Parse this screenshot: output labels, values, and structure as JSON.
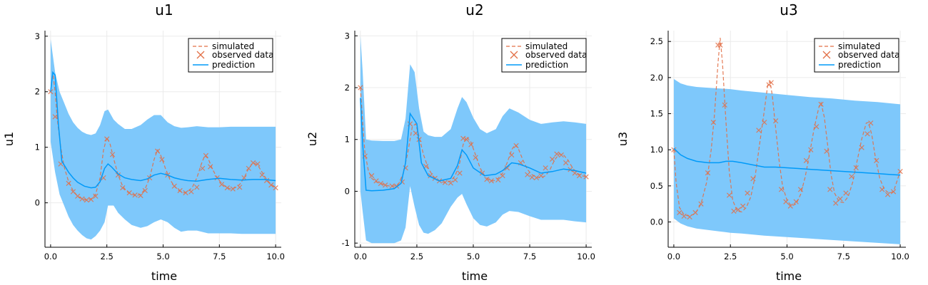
{
  "colors": {
    "band": "#7ec8fb",
    "prediction": "#009af9",
    "simulated": "#e26f46",
    "observed": "#e26f46",
    "grid": "#ebebeb",
    "axis": "#000000"
  },
  "chart_data": [
    {
      "type": "line",
      "title": "u1",
      "xlabel": "time",
      "ylabel": "u1",
      "xlim": [
        -0.25,
        10.25
      ],
      "ylim": [
        -0.8,
        3.1
      ],
      "xticks": [
        0,
        2.5,
        5,
        7.5,
        10
      ],
      "xtick_labels": [
        "0.0",
        "2.5",
        "5.0",
        "7.5",
        "10.0"
      ],
      "yticks": [
        0,
        1,
        2,
        3
      ],
      "ytick_labels": [
        "0",
        "1",
        "2",
        "3"
      ],
      "legend": {
        "position": "top-right",
        "entries": [
          "simulated",
          "observed data",
          "prediction"
        ]
      },
      "simulated": {
        "x": [
          0,
          0.1,
          0.2,
          0.3,
          0.45,
          0.6,
          0.8,
          1.0,
          1.2,
          1.4,
          1.6,
          1.8,
          2.0,
          2.2,
          2.35,
          2.5,
          2.65,
          2.8,
          3.0,
          3.2,
          3.4,
          3.6,
          3.8,
          4.0,
          4.2,
          4.4,
          4.6,
          4.75,
          4.9,
          5.1,
          5.3,
          5.5,
          5.7,
          5.9,
          6.1,
          6.3,
          6.5,
          6.7,
          6.85,
          7.0,
          7.2,
          7.4,
          7.6,
          7.8,
          8.0,
          8.2,
          8.4,
          8.6,
          8.8,
          9.0,
          9.2,
          9.4,
          9.6,
          9.8,
          10.0
        ],
        "y": [
          2.0,
          2.35,
          2.0,
          1.5,
          1.0,
          0.65,
          0.38,
          0.22,
          0.12,
          0.07,
          0.05,
          0.07,
          0.15,
          0.45,
          0.95,
          1.18,
          1.05,
          0.8,
          0.5,
          0.3,
          0.2,
          0.15,
          0.13,
          0.15,
          0.25,
          0.45,
          0.78,
          0.95,
          0.85,
          0.62,
          0.42,
          0.3,
          0.22,
          0.18,
          0.2,
          0.28,
          0.45,
          0.7,
          0.85,
          0.8,
          0.6,
          0.45,
          0.35,
          0.28,
          0.25,
          0.27,
          0.33,
          0.45,
          0.62,
          0.72,
          0.68,
          0.55,
          0.42,
          0.33,
          0.27
        ]
      },
      "observed": {
        "x": [
          0,
          0.2,
          0.45,
          0.8,
          1.0,
          1.2,
          1.4,
          1.6,
          1.8,
          2.0,
          2.35,
          2.5,
          2.75,
          3.0,
          3.2,
          3.5,
          3.75,
          4.0,
          4.2,
          4.4,
          4.75,
          4.95,
          5.2,
          5.5,
          5.75,
          6.0,
          6.25,
          6.5,
          6.75,
          6.9,
          7.1,
          7.4,
          7.6,
          7.85,
          8.1,
          8.4,
          8.6,
          8.8,
          9.0,
          9.2,
          9.4,
          9.6,
          9.8,
          10.0
        ],
        "y": [
          2.0,
          1.55,
          0.7,
          0.35,
          0.2,
          0.12,
          0.07,
          0.05,
          0.06,
          0.12,
          0.45,
          1.15,
          0.87,
          0.5,
          0.27,
          0.18,
          0.14,
          0.13,
          0.22,
          0.45,
          0.93,
          0.78,
          0.5,
          0.3,
          0.22,
          0.18,
          0.2,
          0.28,
          0.62,
          0.85,
          0.65,
          0.45,
          0.33,
          0.27,
          0.25,
          0.28,
          0.45,
          0.62,
          0.72,
          0.7,
          0.5,
          0.4,
          0.32,
          0.27
        ]
      },
      "prediction": {
        "x": [
          0,
          0.1,
          0.2,
          0.35,
          0.5,
          0.8,
          1.0,
          1.2,
          1.5,
          1.8,
          2.0,
          2.2,
          2.4,
          2.55,
          2.7,
          3.0,
          3.3,
          3.6,
          4.0,
          4.3,
          4.6,
          4.9,
          5.2,
          5.5,
          5.8,
          6.1,
          6.5,
          7.0,
          7.5,
          8.0,
          8.5,
          9.0,
          9.5,
          10.0
        ],
        "y": [
          2.0,
          2.35,
          2.3,
          1.4,
          0.75,
          0.55,
          0.45,
          0.37,
          0.3,
          0.27,
          0.28,
          0.38,
          0.62,
          0.7,
          0.65,
          0.52,
          0.45,
          0.42,
          0.4,
          0.43,
          0.5,
          0.53,
          0.5,
          0.45,
          0.42,
          0.4,
          0.39,
          0.42,
          0.44,
          0.42,
          0.41,
          0.42,
          0.42,
          0.4
        ]
      },
      "band": {
        "x": [
          0,
          0.2,
          0.4,
          0.6,
          0.8,
          1.0,
          1.2,
          1.4,
          1.6,
          1.8,
          2.0,
          2.2,
          2.4,
          2.55,
          2.8,
          3.0,
          3.3,
          3.6,
          4.0,
          4.3,
          4.6,
          4.9,
          5.2,
          5.5,
          5.8,
          6.1,
          6.5,
          7.0,
          7.5,
          8.0,
          8.5,
          9.0,
          9.5,
          10.0
        ],
        "lower": [
          1.1,
          0.55,
          0.15,
          -0.05,
          -0.25,
          -0.4,
          -0.5,
          -0.58,
          -0.64,
          -0.66,
          -0.6,
          -0.5,
          -0.35,
          -0.05,
          -0.05,
          -0.18,
          -0.3,
          -0.4,
          -0.45,
          -0.42,
          -0.35,
          -0.3,
          -0.35,
          -0.45,
          -0.52,
          -0.5,
          -0.5,
          -0.55,
          -0.55,
          -0.55,
          -0.56,
          -0.56,
          -0.56,
          -0.56
        ],
        "upper": [
          2.95,
          2.35,
          2.0,
          1.8,
          1.6,
          1.45,
          1.35,
          1.28,
          1.24,
          1.22,
          1.25,
          1.4,
          1.65,
          1.68,
          1.5,
          1.42,
          1.33,
          1.33,
          1.4,
          1.5,
          1.58,
          1.58,
          1.45,
          1.38,
          1.35,
          1.36,
          1.38,
          1.36,
          1.36,
          1.37,
          1.37,
          1.37,
          1.37,
          1.37
        ]
      }
    },
    {
      "type": "line",
      "title": "u2",
      "xlabel": "time",
      "ylabel": "u2",
      "xlim": [
        -0.25,
        10.25
      ],
      "ylim": [
        -1.08,
        3.1
      ],
      "xticks": [
        0,
        2.5,
        5,
        7.5,
        10
      ],
      "xtick_labels": [
        "0.0",
        "2.5",
        "5.0",
        "7.5",
        "10.0"
      ],
      "yticks": [
        -1,
        0,
        1,
        2,
        3
      ],
      "ytick_labels": [
        "-1",
        "0",
        "1",
        "2",
        "3"
      ],
      "legend": {
        "position": "top-right",
        "entries": [
          "simulated",
          "observed data",
          "prediction"
        ]
      },
      "simulated": {
        "x": [
          0,
          0.1,
          0.2,
          0.35,
          0.5,
          0.7,
          0.9,
          1.1,
          1.3,
          1.5,
          1.7,
          1.9,
          2.1,
          2.3,
          2.45,
          2.6,
          2.8,
          3.0,
          3.2,
          3.4,
          3.6,
          3.8,
          4.0,
          4.2,
          4.4,
          4.55,
          4.7,
          4.9,
          5.1,
          5.3,
          5.5,
          5.7,
          5.9,
          6.1,
          6.3,
          6.5,
          6.7,
          6.85,
          7.0,
          7.2,
          7.4,
          7.6,
          7.8,
          8.0,
          8.2,
          8.4,
          8.6,
          8.8,
          9.0,
          9.2,
          9.4,
          9.6,
          9.8,
          10.0
        ],
        "y": [
          2.0,
          1.3,
          0.75,
          0.4,
          0.25,
          0.18,
          0.15,
          0.12,
          0.1,
          0.1,
          0.15,
          0.35,
          0.75,
          1.25,
          1.3,
          1.05,
          0.7,
          0.45,
          0.3,
          0.22,
          0.18,
          0.17,
          0.2,
          0.3,
          0.55,
          0.9,
          1.05,
          0.95,
          0.7,
          0.45,
          0.3,
          0.22,
          0.2,
          0.25,
          0.35,
          0.55,
          0.8,
          0.9,
          0.82,
          0.6,
          0.42,
          0.32,
          0.27,
          0.26,
          0.3,
          0.42,
          0.6,
          0.72,
          0.7,
          0.6,
          0.45,
          0.35,
          0.3,
          0.28
        ]
      },
      "observed": {
        "x": [
          0,
          0.2,
          0.5,
          0.7,
          0.9,
          1.1,
          1.4,
          1.6,
          1.85,
          2.0,
          2.2,
          2.45,
          2.6,
          2.9,
          3.1,
          3.3,
          3.5,
          3.75,
          4.0,
          4.2,
          4.4,
          4.55,
          4.7,
          4.9,
          5.1,
          5.4,
          5.6,
          5.8,
          6.1,
          6.3,
          6.5,
          6.7,
          6.9,
          7.1,
          7.4,
          7.6,
          7.8,
          8.0,
          8.2,
          8.5,
          8.7,
          8.9,
          9.1,
          9.3,
          9.5,
          9.7,
          10.0
        ],
        "y": [
          2.0,
          0.68,
          0.3,
          0.2,
          0.15,
          0.12,
          0.1,
          0.1,
          0.18,
          0.45,
          1.3,
          1.12,
          1.0,
          0.48,
          0.3,
          0.25,
          0.2,
          0.17,
          0.16,
          0.22,
          0.35,
          1.02,
          1.0,
          0.9,
          0.65,
          0.35,
          0.23,
          0.2,
          0.22,
          0.3,
          0.45,
          0.7,
          0.88,
          0.55,
          0.32,
          0.27,
          0.26,
          0.3,
          0.45,
          0.62,
          0.72,
          0.7,
          0.55,
          0.42,
          0.35,
          0.3,
          0.28
        ]
      },
      "prediction": {
        "x": [
          0,
          0.1,
          0.25,
          0.5,
          1.0,
          1.5,
          1.8,
          2.0,
          2.2,
          2.5,
          2.7,
          3.0,
          3.5,
          4.0,
          4.3,
          4.5,
          4.7,
          5.0,
          5.5,
          6.0,
          6.3,
          6.7,
          7.0,
          7.5,
          8.0,
          8.5,
          9.0,
          9.5,
          10.0
        ],
        "y": [
          1.8,
          0.9,
          0.02,
          0.01,
          0.02,
          0.05,
          0.15,
          0.55,
          1.5,
          1.3,
          0.55,
          0.3,
          0.2,
          0.25,
          0.5,
          0.8,
          0.7,
          0.45,
          0.3,
          0.33,
          0.4,
          0.55,
          0.53,
          0.45,
          0.35,
          0.38,
          0.43,
          0.4,
          0.35
        ]
      },
      "band": {
        "x": [
          0,
          0.1,
          0.25,
          0.5,
          1.0,
          1.5,
          1.8,
          2.0,
          2.2,
          2.4,
          2.6,
          2.8,
          3.0,
          3.3,
          3.6,
          4.0,
          4.3,
          4.5,
          4.7,
          5.0,
          5.3,
          5.6,
          6.0,
          6.3,
          6.6,
          7.0,
          7.5,
          8.0,
          8.5,
          9.0,
          9.5,
          10.0
        ],
        "lower": [
          0.0,
          -0.4,
          -0.95,
          -1.0,
          -1.0,
          -1.0,
          -0.95,
          -0.7,
          0.1,
          -0.3,
          -0.65,
          -0.8,
          -0.82,
          -0.75,
          -0.62,
          -0.3,
          -0.12,
          -0.05,
          -0.25,
          -0.52,
          -0.65,
          -0.68,
          -0.6,
          -0.45,
          -0.38,
          -0.4,
          -0.48,
          -0.55,
          -0.55,
          -0.55,
          -0.58,
          -0.6
        ],
        "upper": [
          3.0,
          2.3,
          1.0,
          0.98,
          0.97,
          0.97,
          1.0,
          1.4,
          2.45,
          2.3,
          1.6,
          1.15,
          1.08,
          1.05,
          1.05,
          1.2,
          1.6,
          1.82,
          1.72,
          1.42,
          1.2,
          1.12,
          1.2,
          1.45,
          1.6,
          1.52,
          1.38,
          1.3,
          1.33,
          1.35,
          1.33,
          1.3
        ]
      }
    },
    {
      "type": "line",
      "title": "u3",
      "xlabel": "time",
      "ylabel": "u3",
      "xlim": [
        -0.25,
        10.25
      ],
      "ylim": [
        -0.35,
        2.65
      ],
      "xticks": [
        0,
        2.5,
        5,
        7.5,
        10
      ],
      "xtick_labels": [
        "0.0",
        "2.5",
        "5.0",
        "7.5",
        "10.0"
      ],
      "yticks": [
        0,
        0.5,
        1,
        1.5,
        2,
        2.5
      ],
      "ytick_labels": [
        "0.0",
        "0.5",
        "1.0",
        "1.5",
        "2.0",
        "2.5"
      ],
      "legend": {
        "position": "top-right",
        "entries": [
          "simulated",
          "observed data",
          "prediction"
        ]
      },
      "simulated": {
        "x": [
          0,
          0.1,
          0.25,
          0.45,
          0.7,
          0.95,
          1.2,
          1.45,
          1.65,
          1.8,
          1.95,
          2.05,
          2.15,
          2.3,
          2.45,
          2.6,
          2.8,
          3.0,
          3.2,
          3.4,
          3.6,
          3.8,
          4.0,
          4.15,
          4.25,
          4.35,
          4.5,
          4.65,
          4.8,
          5.0,
          5.2,
          5.4,
          5.6,
          5.8,
          6.0,
          6.2,
          6.4,
          6.5,
          6.65,
          6.8,
          6.95,
          7.1,
          7.3,
          7.5,
          7.7,
          7.9,
          8.1,
          8.3,
          8.5,
          8.6,
          8.75,
          8.9,
          9.1,
          9.3,
          9.5,
          9.7,
          10.0
        ],
        "y": [
          1.0,
          0.55,
          0.2,
          0.1,
          0.08,
          0.12,
          0.25,
          0.55,
          1.0,
          1.5,
          2.2,
          2.55,
          2.2,
          1.4,
          0.7,
          0.3,
          0.15,
          0.14,
          0.2,
          0.35,
          0.65,
          1.1,
          1.55,
          1.9,
          1.95,
          1.75,
          1.3,
          0.85,
          0.5,
          0.3,
          0.22,
          0.25,
          0.38,
          0.62,
          0.95,
          1.3,
          1.58,
          1.65,
          1.45,
          1.05,
          0.65,
          0.4,
          0.28,
          0.27,
          0.35,
          0.55,
          0.85,
          1.15,
          1.37,
          1.38,
          1.2,
          0.9,
          0.6,
          0.45,
          0.4,
          0.42,
          0.7
        ]
      },
      "observed": {
        "x": [
          0,
          0.25,
          0.45,
          0.7,
          0.95,
          1.2,
          1.5,
          1.75,
          1.95,
          2.05,
          2.25,
          2.45,
          2.65,
          2.85,
          3.05,
          3.25,
          3.5,
          3.75,
          4.0,
          4.2,
          4.3,
          4.5,
          4.75,
          4.95,
          5.15,
          5.4,
          5.6,
          5.85,
          6.05,
          6.3,
          6.5,
          6.75,
          6.9,
          7.15,
          7.35,
          7.6,
          7.85,
          8.05,
          8.3,
          8.55,
          8.7,
          8.95,
          9.2,
          9.45,
          9.7,
          10.0
        ],
        "y": [
          1.0,
          0.13,
          0.08,
          0.07,
          0.13,
          0.25,
          0.68,
          1.38,
          2.45,
          2.45,
          1.62,
          0.37,
          0.15,
          0.17,
          0.22,
          0.4,
          0.6,
          1.27,
          1.38,
          1.9,
          1.93,
          1.4,
          0.45,
          0.28,
          0.22,
          0.28,
          0.45,
          0.85,
          1.0,
          1.32,
          1.63,
          0.98,
          0.45,
          0.26,
          0.32,
          0.4,
          0.63,
          0.75,
          1.03,
          1.22,
          1.37,
          0.85,
          0.45,
          0.38,
          0.42,
          0.7
        ]
      },
      "prediction": {
        "x": [
          0,
          0.3,
          0.6,
          1.0,
          1.5,
          2.0,
          2.3,
          2.6,
          3.0,
          3.5,
          4.0,
          4.5,
          5.0,
          5.5,
          6.0,
          6.5,
          7.0,
          7.5,
          8.0,
          8.5,
          9.0,
          9.5,
          10.0
        ],
        "y": [
          1.02,
          0.93,
          0.88,
          0.84,
          0.82,
          0.82,
          0.84,
          0.84,
          0.82,
          0.79,
          0.76,
          0.76,
          0.75,
          0.74,
          0.73,
          0.72,
          0.71,
          0.7,
          0.69,
          0.68,
          0.67,
          0.66,
          0.65
        ]
      },
      "band": {
        "x": [
          0,
          0.3,
          0.6,
          1.0,
          1.5,
          2.0,
          2.5,
          3.0,
          4.0,
          5.0,
          6.0,
          7.0,
          8.0,
          9.0,
          10.0
        ],
        "lower": [
          0.05,
          -0.02,
          -0.06,
          -0.09,
          -0.11,
          -0.13,
          -0.15,
          -0.16,
          -0.19,
          -0.21,
          -0.23,
          -0.25,
          -0.27,
          -0.29,
          -0.31
        ],
        "upper": [
          1.98,
          1.92,
          1.89,
          1.87,
          1.86,
          1.85,
          1.84,
          1.82,
          1.79,
          1.76,
          1.73,
          1.71,
          1.68,
          1.66,
          1.63
        ]
      }
    }
  ]
}
